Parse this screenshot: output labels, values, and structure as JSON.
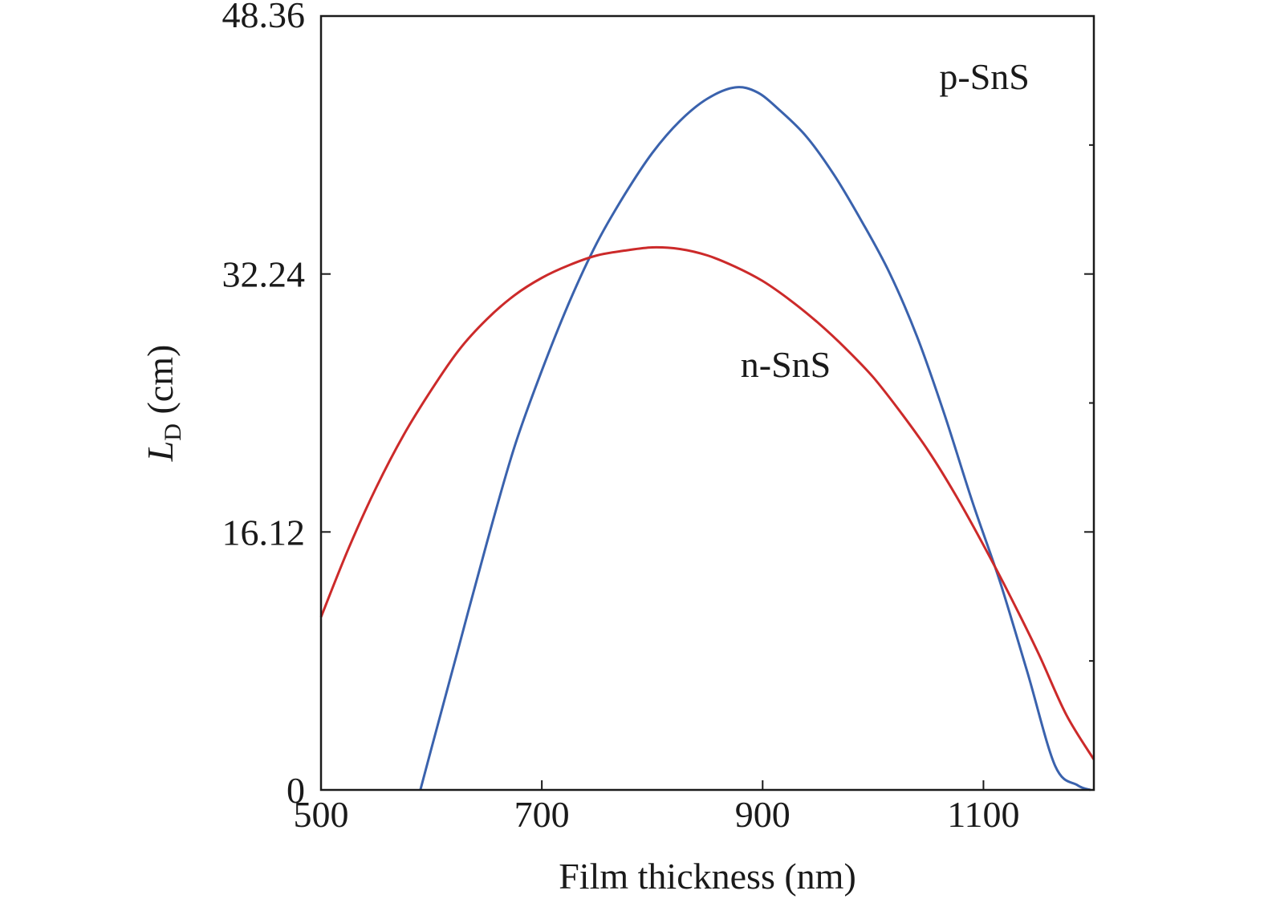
{
  "chart_data": {
    "type": "line",
    "xlabel": "Film thickness (nm)",
    "ylabel_main": "L",
    "ylabel_sub": "D",
    "ylabel_unit": " (cm)",
    "xlim": [
      500,
      1200
    ],
    "ylim": [
      0,
      48.36
    ],
    "xticks": [
      500,
      700,
      900,
      1100
    ],
    "yticks": [
      "0",
      "16.12",
      "32.24",
      "48.36"
    ],
    "ytick_values": [
      0,
      16.12,
      32.24,
      48.36
    ],
    "grid": false,
    "legend": "none",
    "series": [
      {
        "name": "p-SnS",
        "color": "#3a62ad",
        "x": [
          590,
          600,
          625,
          650,
          675,
          700,
          725,
          750,
          775,
          800,
          825,
          850,
          875,
          895,
          915,
          940,
          965,
          990,
          1015,
          1040,
          1065,
          1090,
          1115,
          1140,
          1165,
          1185,
          1197
        ],
        "y": [
          0,
          2.6,
          9.0,
          15.4,
          21.4,
          26.2,
          30.5,
          34.2,
          37.2,
          39.8,
          41.8,
          43.2,
          43.9,
          43.6,
          42.5,
          40.8,
          38.4,
          35.5,
          32.3,
          28.3,
          23.4,
          18.0,
          13.0,
          7.3,
          1.5,
          0.3,
          0
        ]
      },
      {
        "name": "n-SnS",
        "color": "#cc2a2a",
        "x": [
          500,
          525,
          550,
          575,
          600,
          625,
          650,
          675,
          700,
          725,
          750,
          775,
          800,
          825,
          850,
          875,
          900,
          925,
          950,
          975,
          1000,
          1025,
          1050,
          1075,
          1100,
          1125,
          1150,
          1175,
          1200
        ],
        "y": [
          10.8,
          15.1,
          18.9,
          22.2,
          25.0,
          27.5,
          29.4,
          30.9,
          32.0,
          32.8,
          33.4,
          33.7,
          33.9,
          33.8,
          33.4,
          32.7,
          31.8,
          30.6,
          29.2,
          27.6,
          25.8,
          23.6,
          21.2,
          18.4,
          15.3,
          12.0,
          8.5,
          4.7,
          1.9
        ]
      }
    ],
    "annotations": [
      {
        "text": "p-SnS",
        "x": 1060,
        "y": 43.8
      },
      {
        "text": "n-SnS",
        "x": 880,
        "y": 25.8
      }
    ]
  }
}
